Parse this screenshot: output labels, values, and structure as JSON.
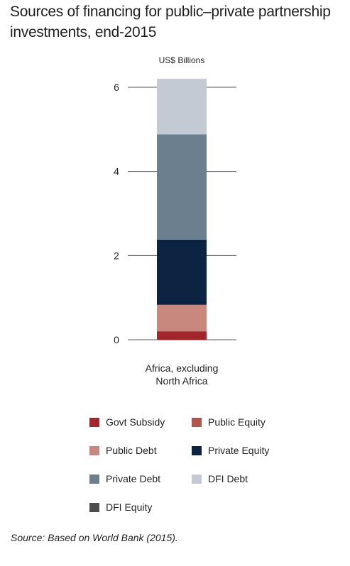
{
  "title": "Sources of financing for public–private partnership investments, end-2015",
  "unit_label": "US$ Billions",
  "source": "Source: Based on World Bank (2015).",
  "chart_data": {
    "type": "bar",
    "stacked": true,
    "categories": [
      "Africa, excluding North Africa"
    ],
    "category_label_lines": [
      "Africa, excluding",
      "North Africa"
    ],
    "ylim": [
      0,
      6.2
    ],
    "yticks": [
      0,
      2,
      4,
      6
    ],
    "ylabel": "US$ Billions",
    "grid": true,
    "series": [
      {
        "name": "Govt Subsidy",
        "values": [
          0.2
        ],
        "color": "#a3262c"
      },
      {
        "name": "Public Equity",
        "values": [
          0
        ],
        "color": "#b5544a"
      },
      {
        "name": "Public Debt",
        "values": [
          0.63
        ],
        "color": "#c8887e"
      },
      {
        "name": "Private Equity",
        "values": [
          1.55
        ],
        "color": "#0c2342"
      },
      {
        "name": "Private Debt",
        "values": [
          2.5
        ],
        "color": "#6c7f8f"
      },
      {
        "name": "DFI Debt",
        "values": [
          1.32
        ],
        "color": "#c3cad3"
      },
      {
        "name": "DFI Equity",
        "values": [
          0
        ],
        "color": "#4d4d4f"
      }
    ]
  }
}
